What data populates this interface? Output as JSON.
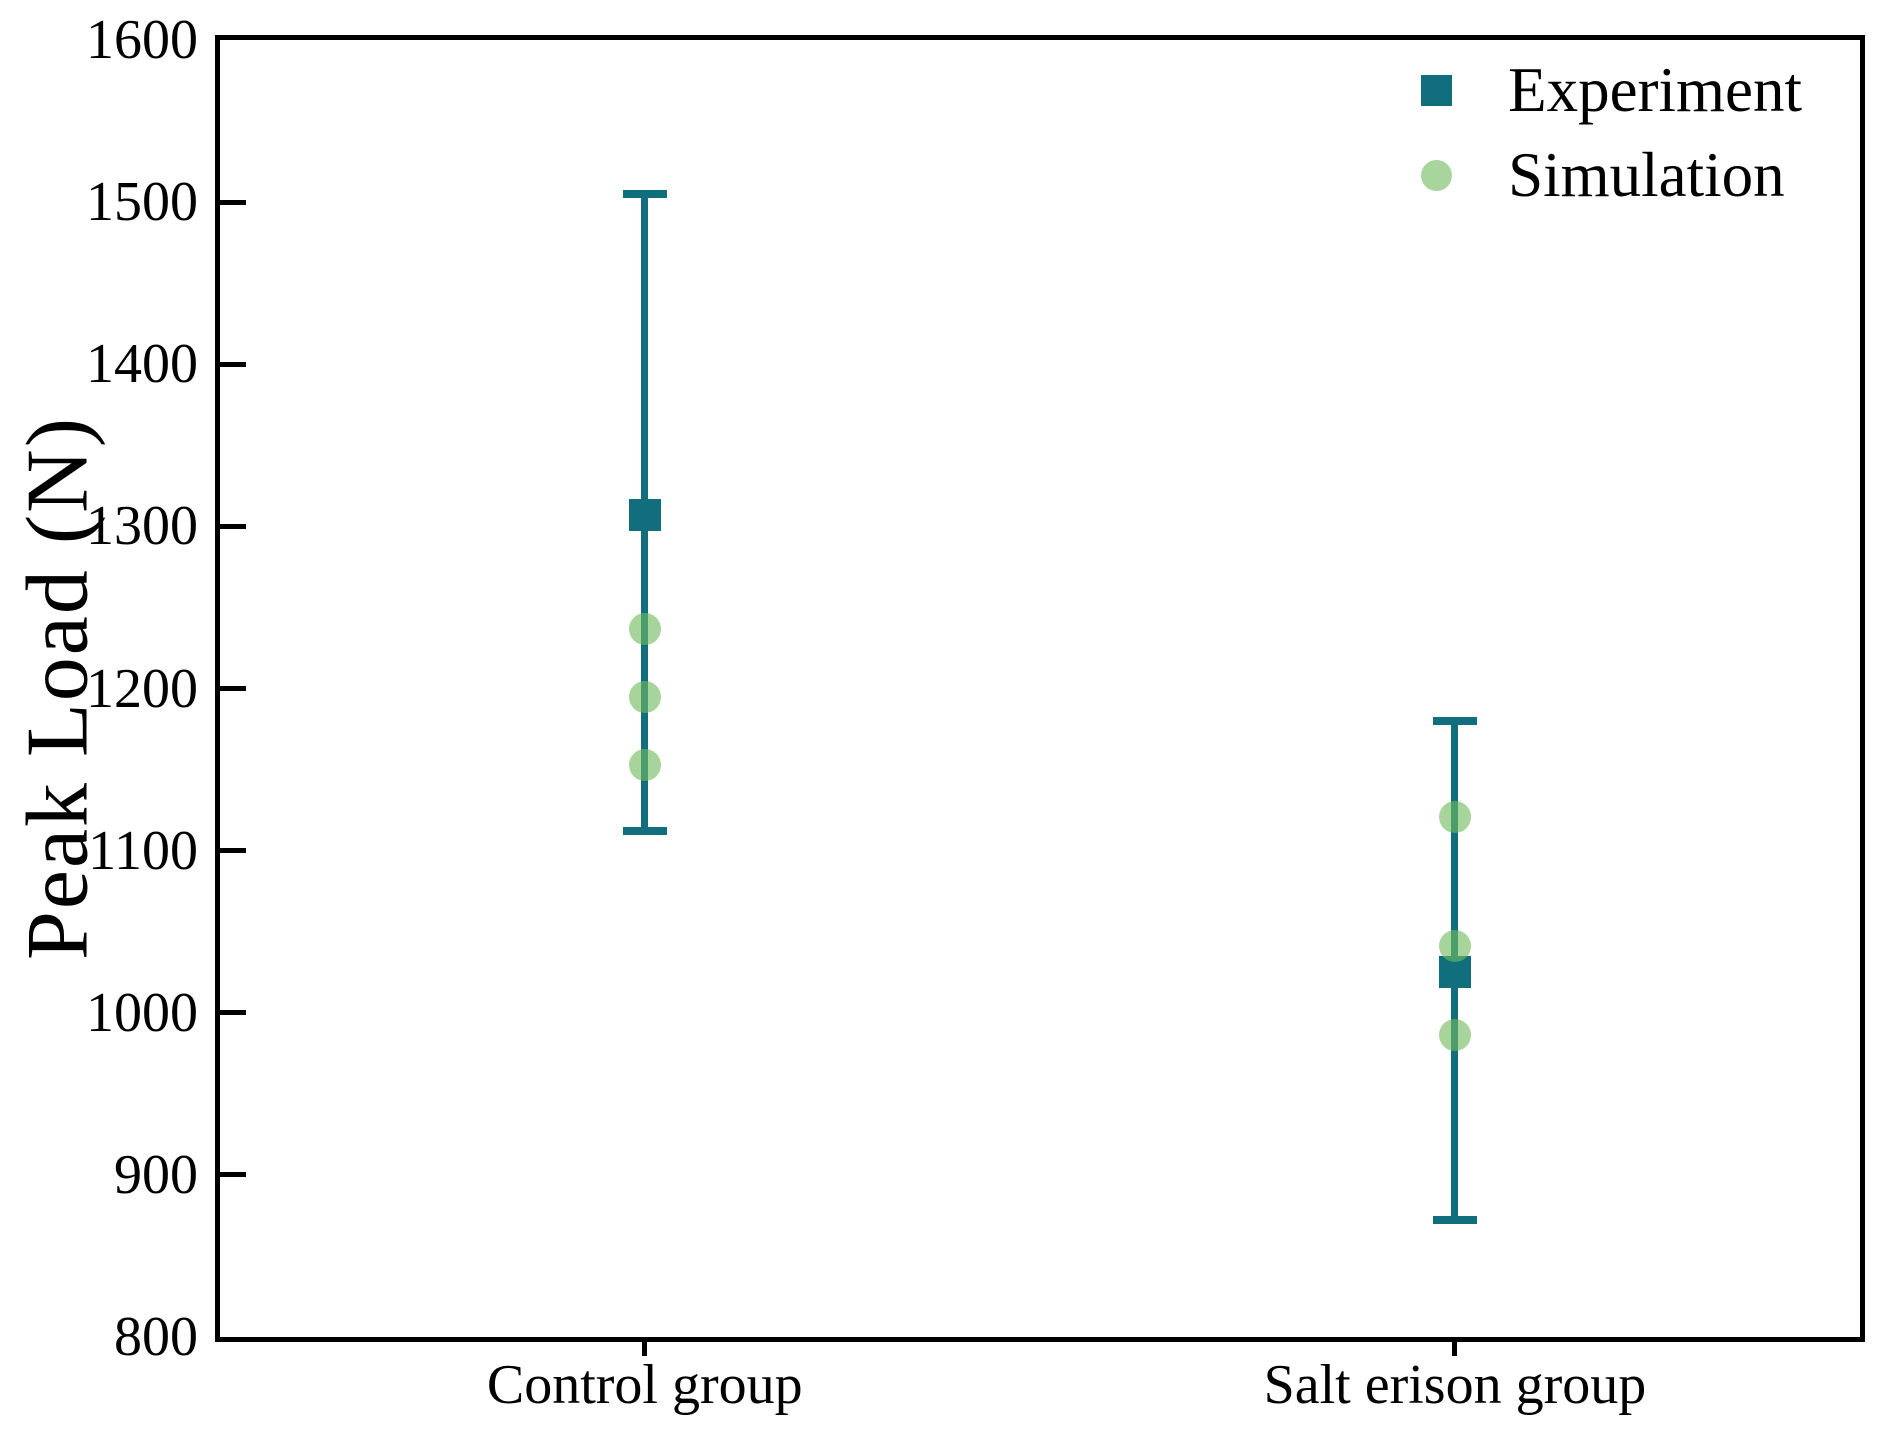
{
  "figure": {
    "background": "#ffffff"
  },
  "colors": {
    "experiment": "#116e7c",
    "simulation_base": "#70b95d",
    "simulation_effective": "#a8d59b",
    "axis": "#000000"
  },
  "legend": {
    "position": "top-right",
    "items": [
      {
        "label": "Experiment",
        "marker": "square"
      },
      {
        "label": "Simulation",
        "marker": "circle"
      }
    ]
  },
  "chart_data": {
    "type": "scatter",
    "title": "",
    "xlabel": "",
    "ylabel": "Peak Load (N)",
    "ylim": [
      800,
      1600
    ],
    "yticks": [
      800,
      900,
      1000,
      1100,
      1200,
      1300,
      1400,
      1500,
      1600
    ],
    "categories": [
      "Control group",
      "Salt erison group"
    ],
    "grid": false,
    "legend_position": "top-right",
    "series": [
      {
        "name": "Experiment",
        "marker": "square",
        "color": "#116e7c",
        "points": [
          {
            "category": "Control group",
            "mean": 1307,
            "err_low": 1112,
            "err_high": 1505
          },
          {
            "category": "Salt erison group",
            "mean": 1025,
            "err_low": 872,
            "err_high": 1180
          }
        ]
      },
      {
        "name": "Simulation",
        "marker": "circle",
        "color": "#70b95d",
        "opacity": 0.62,
        "points": [
          {
            "category": "Control group",
            "values": [
              1237,
              1195,
              1153
            ]
          },
          {
            "category": "Salt erison group",
            "values": [
              1121,
              1041,
              986
            ]
          }
        ]
      }
    ]
  }
}
